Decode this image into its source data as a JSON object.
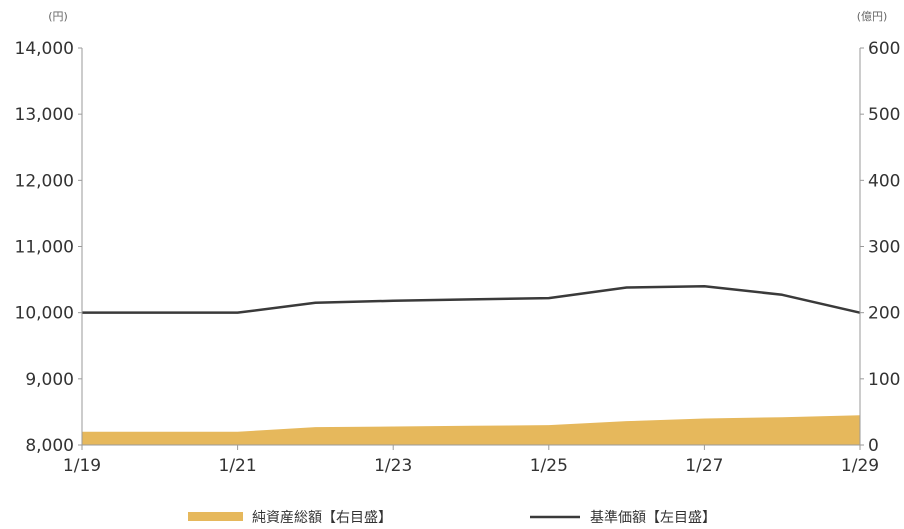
{
  "chart_data": {
    "type": "line",
    "x": [
      "1/19",
      "1/20",
      "1/21",
      "1/22",
      "1/23",
      "1/24",
      "1/25",
      "1/26",
      "1/27",
      "1/28",
      "1/29"
    ],
    "x_tick_labels": [
      "1/19",
      "1/21",
      "1/23",
      "1/25",
      "1/27",
      "1/29"
    ],
    "left_axis": {
      "unit": "(円)",
      "ylim": [
        8000,
        14000
      ],
      "ticks": [
        "8,000",
        "9,000",
        "10,000",
        "11,000",
        "12,000",
        "13,000",
        "14,000"
      ]
    },
    "right_axis": {
      "unit": "(億円)",
      "ylim": [
        0,
        600
      ],
      "ticks": [
        "0",
        "100",
        "200",
        "300",
        "400",
        "500",
        "600"
      ]
    },
    "series": [
      {
        "name": "純資産総額【右目盛】",
        "kind": "area",
        "axis": "right",
        "values": [
          20,
          20,
          20,
          27,
          28,
          29,
          30,
          36,
          40,
          42,
          45
        ]
      },
      {
        "name": "基準価額【左目盛】",
        "kind": "line",
        "axis": "left",
        "values": [
          10000,
          10000,
          10000,
          10150,
          10180,
          10200,
          10220,
          10380,
          10400,
          10270,
          10000
        ]
      }
    ],
    "grid": false,
    "legend_position": "bottom",
    "colors": {
      "area": "#E6B85C",
      "line": "#3a3a3a",
      "axis": "#9a9a9a"
    }
  }
}
